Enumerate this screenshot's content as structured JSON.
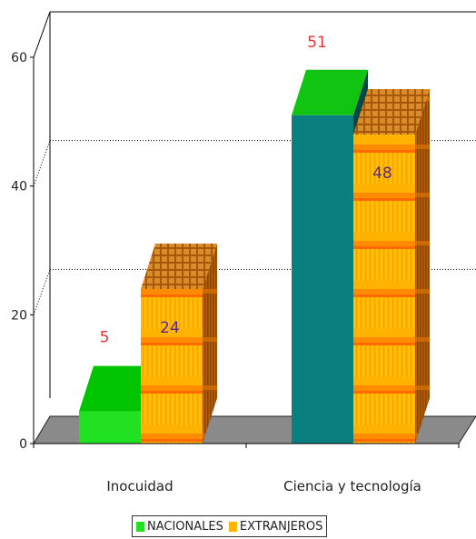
{
  "chart_data": {
    "type": "bar",
    "title": "",
    "xlabel": "",
    "ylabel": "",
    "categories": [
      "Inocuidad",
      "Ciencia y tecnología"
    ],
    "series": [
      {
        "name": "NACIONALES",
        "values": [
          5,
          51
        ],
        "color": "#22e022",
        "colors": [
          "#22e022",
          "#0a7f7f"
        ]
      },
      {
        "name": "EXTRANJEROS",
        "values": [
          24,
          48
        ],
        "color": "#ffb400"
      }
    ],
    "ylim": [
      0,
      60
    ],
    "yticks": [
      "0",
      "20",
      "40",
      "60"
    ],
    "data_labels": [
      [
        "5",
        "51"
      ],
      [
        "24",
        "48"
      ]
    ],
    "grid": true,
    "legend_position": "bottom-center",
    "style": "3d-bars"
  },
  "legend": {
    "items": [
      {
        "label": "NACIONALES",
        "color": "#22e022"
      },
      {
        "label": "EXTRANJEROS",
        "color": "#ffb400"
      }
    ]
  }
}
